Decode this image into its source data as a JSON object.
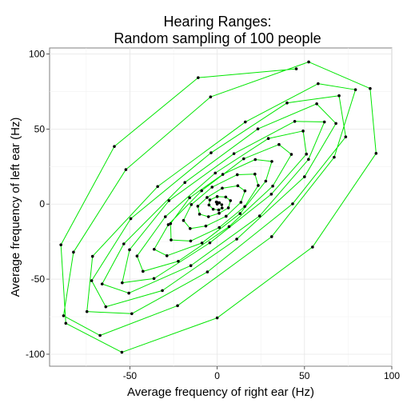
{
  "chart_data": {
    "type": "scatter",
    "title_lines": [
      "Hearing Ranges:",
      "Random sampling of 100 people"
    ],
    "xlabel": "Average frequency of right ear (Hz)",
    "ylabel": "Average frequency of left ear (Hz)",
    "xlim": [
      -96,
      100
    ],
    "ylim": [
      -108,
      104
    ],
    "x_ticks": [
      -50,
      0,
      50,
      100
    ],
    "y_ticks": [
      -100,
      -50,
      0,
      50,
      100
    ],
    "x_tick_labels": [
      "-50",
      "0",
      "50",
      "100"
    ],
    "y_tick_labels": [
      "-100",
      "-50",
      "0",
      "50",
      "100"
    ],
    "grid": true,
    "line_color": "#00e600",
    "point_color": "#000000",
    "series": [
      {
        "x": [
          0.0,
          -0.5,
          -0.1,
          1.2,
          2.6,
          2.8,
          0.9,
          -2.3,
          -4.7,
          -4.2,
          0.0,
          4.9,
          7.6,
          6.4,
          1.1,
          -5.0,
          -10.1,
          -11.1,
          -5.8,
          2.9,
          11.8,
          15.9,
          13.6,
          5.1,
          -6.5,
          -15.5,
          -19.3,
          -14.8,
          -2.9,
          11.5,
          21.6,
          23.5,
          15.8,
          1.2,
          -15.2,
          -26.4,
          -26.7,
          -15.8,
          3.2,
          21.8,
          31.3,
          27.8,
          13.1,
          -8.7,
          -28.8,
          -36.1,
          -28.0,
          -8.9,
          15.2,
          35.4,
          42.5,
          31.8,
          6.8,
          -22.3,
          -42.5,
          -45.9,
          -29.7,
          -1.1,
          29.3,
          49.2,
          51.1,
          31.0,
          -4.2,
          -36.2,
          -54.4,
          -50.2,
          -27.6,
          9.6,
          44.4,
          61.4,
          52.3,
          24.3,
          -15.1,
          -50.6,
          -65.9,
          -53.5,
          -18.5,
          23.3,
          57.0,
          68.0,
          50.0,
          11.2,
          -31.4,
          -63.8,
          -71.9,
          -49.5,
          -3.5,
          40.0,
          69.8,
          73.6,
          43.2,
          -5.6,
          -48.9,
          -74.6,
          -71.4,
          -34.1,
          16.1,
          57.8,
          79.2,
          67.0
        ],
        "y": [
          0.0,
          1.4,
          1.2,
          0.9,
          -0.4,
          -2.6,
          -3.9,
          -3.4,
          -0.6,
          2.8,
          5.0,
          4.7,
          2.3,
          -2.5,
          -6.1,
          -8.4,
          -6.7,
          -1.4,
          4.4,
          10.6,
          12.2,
          8.8,
          1.2,
          -8.1,
          -14.6,
          -16.3,
          -10.9,
          -0.3,
          11.3,
          19.6,
          20.0,
          12.4,
          -1.6,
          -15.6,
          -24.6,
          -23.9,
          -13.0,
          4.2,
          19.8,
          29.7,
          28.4,
          15.3,
          -6.3,
          -25.9,
          -34.4,
          -30.1,
          -13.7,
          8.9,
          30.2,
          39.7,
          33.1,
          12.0,
          -15.0,
          -38.1,
          -44.8,
          -34.6,
          -8.4,
          20.7,
          43.7,
          48.7,
          33.3,
          6.6,
          -25.8,
          -49.6,
          -52.4,
          -30.4,
          2.3,
          33.6,
          55.1,
          54.7,
          29.8,
          -7.9,
          -41.0,
          -59.3,
          -53.2,
          -26.5,
          14.4,
          50.1,
          66.8,
          53.7,
          18.2,
          -23.3,
          -57.6,
          -68.4,
          -51.0,
          -9.7,
          34.2,
          67.4,
          72.2,
          44.8,
          0.2,
          -45.2,
          -73.0,
          -71.6,
          -34.8,
          11.7,
          54.7,
          80.2,
          76.2,
          31.2
        ]
      },
      {
        "x": [
          0.0,
          -0.5,
          -0.1,
          1.2,
          2.6,
          2.8,
          0.9,
          -2.3,
          -4.7,
          -4.2,
          0.0,
          4.9,
          7.6,
          6.4,
          1.1,
          -5.0,
          -10.1,
          -11.1,
          -5.8,
          2.9,
          11.8,
          15.9,
          13.6,
          5.1,
          -6.5,
          -15.5,
          -19.3,
          -14.8,
          -2.9,
          11.5,
          21.6,
          23.5,
          15.8,
          1.2,
          -15.2,
          -26.4,
          -26.7,
          -15.8,
          3.2,
          21.8,
          31.3,
          27.8,
          13.1,
          -8.7,
          -28.8,
          -36.1,
          -28.0,
          -8.9,
          15.2,
          35.4,
          42.5,
          31.8,
          6.8,
          -22.3,
          -42.5,
          -45.9,
          -29.7,
          -1.1,
          29.3,
          49.2,
          51.1,
          31.0,
          -4.2,
          -36.2,
          -54.4,
          -50.2,
          -27.6,
          9.6,
          44.4,
          61.4,
          52.3,
          24.3,
          -15.1,
          -50.6,
          -65.9,
          -53.5,
          -18.5,
          23.3,
          57.0,
          68.0,
          50.0,
          11.2,
          -31.4,
          -63.8,
          -71.9,
          -49.5,
          -3.5,
          40.0,
          69.8,
          73.6,
          43.2,
          -5.6,
          -48.9,
          -74.6,
          -71.4,
          -34.1,
          16.1,
          57.8,
          79.2,
          67.0,
          31.2,
          -22.7,
          -67.1,
          -88.0,
          -82.3,
          -52.3,
          -3.8,
          52.4,
          87.6,
          91.0,
          54.6,
          0.0,
          -54.6,
          -86.7,
          -89.5,
          -58.9,
          -10.9,
          45.3
        ],
        "y": [
          0.0,
          1.4,
          1.2,
          0.9,
          -0.4,
          -2.6,
          -3.9,
          -3.4,
          -0.6,
          2.8,
          5.0,
          4.7,
          2.3,
          -2.5,
          -6.1,
          -8.4,
          -6.7,
          -1.4,
          4.4,
          10.6,
          12.2,
          8.8,
          1.2,
          -8.1,
          -14.6,
          -16.3,
          -10.9,
          -0.3,
          11.3,
          19.6,
          20.0,
          12.4,
          -1.6,
          -15.6,
          -24.6,
          -23.9,
          -13.0,
          4.2,
          19.8,
          29.7,
          28.4,
          15.3,
          -6.3,
          -25.9,
          -34.4,
          -30.1,
          -13.7,
          8.9,
          30.2,
          39.7,
          33.1,
          12.0,
          -15.0,
          -38.1,
          -44.8,
          -34.6,
          -8.4,
          20.7,
          43.7,
          48.7,
          33.3,
          6.6,
          -25.8,
          -49.6,
          -52.4,
          -30.4,
          2.3,
          33.6,
          55.1,
          54.7,
          29.8,
          -7.9,
          -41.0,
          -59.3,
          -53.2,
          -26.5,
          14.4,
          50.1,
          66.8,
          53.7,
          18.2,
          -23.3,
          -57.6,
          -68.4,
          -51.0,
          -9.7,
          34.2,
          67.4,
          72.2,
          44.8,
          0.2,
          -45.2,
          -73.0,
          -71.6,
          -34.8,
          11.7,
          54.7,
          80.2,
          76.2,
          31.2,
          -21.7,
          -67.7,
          -87.5,
          -74.4,
          -32.0,
          23.0,
          71.4,
          94.7,
          77.0,
          33.8,
          -28.6,
          -75.8,
          -98.7,
          -79.4,
          -27.1,
          38.4,
          84.2,
          90.1
        ]
      }
    ]
  }
}
